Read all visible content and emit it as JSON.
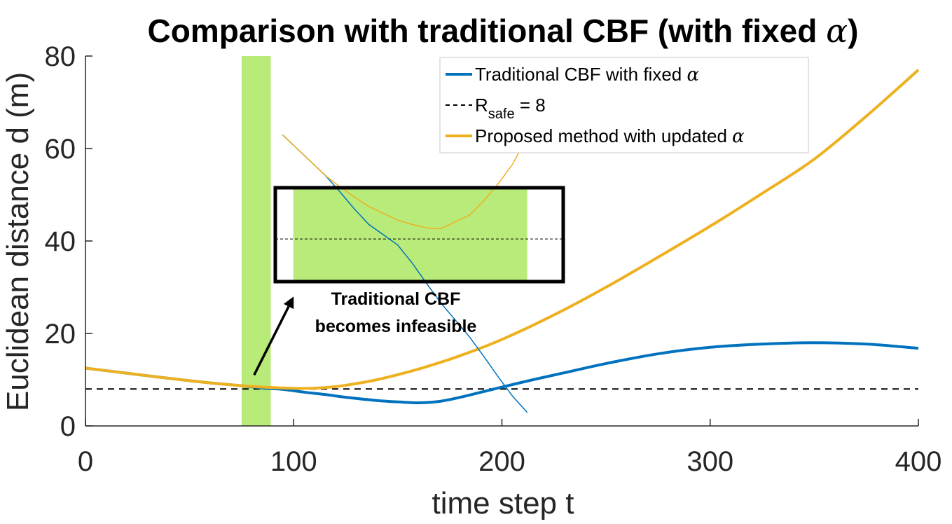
{
  "chart_data": {
    "type": "line",
    "title": "Comparison with traditional CBF (with fixed α)",
    "xlabel": "time step t",
    "ylabel": "Euclidean distance d (m)",
    "xlim": [
      0,
      400
    ],
    "ylim": [
      0,
      80
    ],
    "xticks": [
      "0",
      "100",
      "200",
      "300",
      "400"
    ],
    "yticks": [
      "0",
      "20",
      "40",
      "60",
      "80"
    ],
    "grid": false,
    "legend_position": "top-right",
    "series": [
      {
        "name": "Traditional CBF with fixed α",
        "color": "#0072BD",
        "x": [
          0,
          20,
          40,
          60,
          75,
          85,
          95,
          105,
          115,
          125,
          140,
          150,
          160,
          170,
          180,
          190,
          200,
          215,
          230,
          250,
          275,
          300,
          325,
          350,
          375,
          400
        ],
        "y": [
          12.5,
          11.4,
          10.3,
          9.3,
          8.7,
          8.2,
          7.9,
          7.3,
          6.8,
          6.2,
          5.5,
          5.2,
          5.0,
          5.3,
          6.2,
          7.3,
          8.4,
          10.0,
          11.5,
          13.5,
          15.6,
          17.0,
          17.7,
          18.0,
          17.7,
          16.8
        ]
      },
      {
        "name": "R_safe = 8",
        "color": "#000000",
        "dashed": true,
        "x": [
          0,
          400
        ],
        "y": [
          8,
          8
        ]
      },
      {
        "name": "Proposed method with updated α",
        "color": "#EDB120",
        "x": [
          0,
          20,
          40,
          60,
          75,
          85,
          95,
          105,
          115,
          125,
          140,
          160,
          180,
          200,
          225,
          250,
          275,
          300,
          325,
          350,
          375,
          400
        ],
        "y": [
          12.5,
          11.4,
          10.3,
          9.3,
          8.7,
          8.4,
          8.2,
          8.1,
          8.3,
          8.8,
          10.0,
          12.3,
          15.2,
          18.7,
          24.0,
          30.0,
          36.5,
          43.2,
          50.3,
          57.7,
          67.0,
          77.0
        ]
      }
    ],
    "shaded_region": {
      "x": [
        75,
        89
      ],
      "color": "#B9EB7A"
    },
    "annotation": {
      "line1": "Traditional CBF",
      "line2": "becomes infeasible",
      "arrow_from": [
        81,
        11
      ],
      "arrow_to": [
        100,
        28
      ]
    },
    "inset": {
      "x_range": [
        60,
        140
      ],
      "y_range": [
        7.5,
        8.6
      ],
      "shaded_x": [
        65,
        130
      ]
    },
    "legend_entries": [
      {
        "text": "Traditional CBF with fixed ",
        "greek": "α",
        "color": "#0072BD",
        "dashed": false
      },
      {
        "text": "R",
        "sub": "safe",
        "suffix": " = 8",
        "color": "#000000",
        "dashed": true
      },
      {
        "text": "Proposed method with updated ",
        "greek": "α",
        "color": "#EDB120",
        "dashed": false
      }
    ]
  }
}
